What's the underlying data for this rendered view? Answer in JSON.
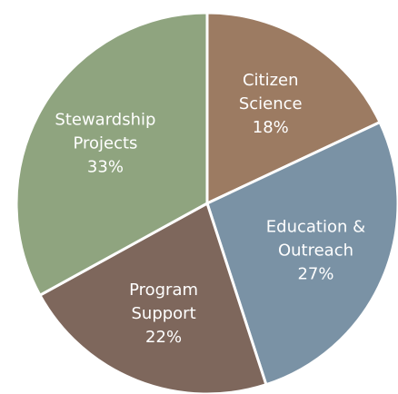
{
  "chart_data": {
    "type": "pie",
    "title": "",
    "slices": [
      {
        "name_lines": [
          "Citizen",
          "Science"
        ],
        "value": 18,
        "value_label": "18%",
        "color": "#9c7b62"
      },
      {
        "name_lines": [
          "Education &",
          "Outreach"
        ],
        "value": 27,
        "value_label": "27%",
        "color": "#7a92a5"
      },
      {
        "name_lines": [
          "Program",
          "Support"
        ],
        "value": 22,
        "value_label": "22%",
        "color": "#7e675c"
      },
      {
        "name_lines": [
          "Stewardship",
          "Projects"
        ],
        "value": 33,
        "value_label": "33%",
        "color": "#8fa47f"
      }
    ],
    "legend": "none",
    "start_angle": "12 o'clock",
    "direction": "clockwise"
  }
}
